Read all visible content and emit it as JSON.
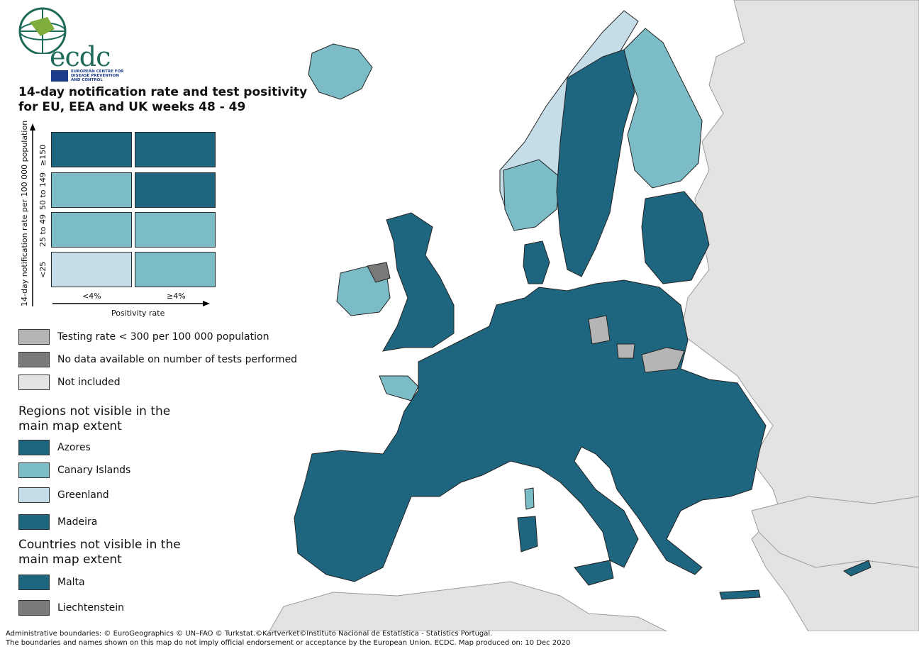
{
  "brand": {
    "logo_text": "ecdc",
    "org_name": "EUROPEAN CENTRE FOR DISEASE PREVENTION AND CONTROL"
  },
  "title": "14-day notification rate and test positivity for EU, EEA and UK weeks 48 - 49",
  "colors": {
    "dark_teal": "#1e6680",
    "light_teal": "#7bbcc6",
    "pale_blue": "#c5dde9",
    "testing_low": "#b5b5b5",
    "no_data": "#7a7a7a",
    "not_included": "#e3e3e3",
    "sea": "#ffffff"
  },
  "matrix": {
    "y_axis_title": "14-day notification rate per 100 000 population",
    "x_axis_title": "Positivity rate",
    "y_labels": [
      "≥150",
      "50 to 149",
      "25 to 49",
      "<25"
    ],
    "x_labels": [
      "<4%",
      "≥4%"
    ],
    "cells": [
      [
        "dark_teal",
        "dark_teal"
      ],
      [
        "light_teal",
        "dark_teal"
      ],
      [
        "light_teal",
        "light_teal"
      ],
      [
        "pale_blue",
        "light_teal"
      ]
    ]
  },
  "legend": [
    {
      "label": "Testing rate < 300 per 100 000 population",
      "color": "#b5b5b5"
    },
    {
      "label": "No data available on number of tests performed",
      "color": "#7a7a7a"
    },
    {
      "label": "Not included",
      "color": "#e3e3e3"
    }
  ],
  "regions_heading": "Regions not visible in the main map extent",
  "regions": [
    {
      "label": "Azores",
      "color": "#1e6680"
    },
    {
      "label": "Canary Islands",
      "color": "#7bbcc6"
    },
    {
      "label": "Greenland",
      "color": "#c5dde9"
    },
    {
      "label": "Madeira",
      "color": "#1e6680"
    }
  ],
  "countries_heading": "Countries not visible in the main map extent",
  "countries": [
    {
      "label": "Malta",
      "color": "#1e6680"
    },
    {
      "label": "Liechtenstein",
      "color": "#7a7a7a"
    }
  ],
  "footer": {
    "line1": "Administrative boundaries: © EuroGeographics © UN–FAO © Turkstat.©Kartverket©Instituto Nacional de Estatística - Statistics Portugal.",
    "line2": "The boundaries and names shown on this map do not imply official endorsement or acceptance by the European Union. ECDC. Map produced on: 10 Dec 2020"
  }
}
